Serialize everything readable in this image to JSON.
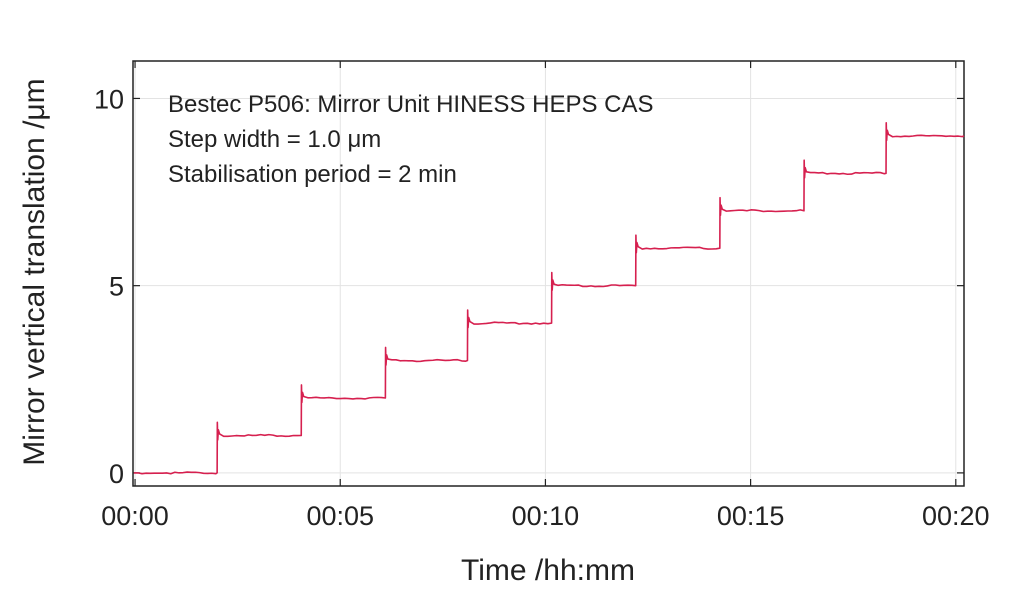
{
  "chart_data": {
    "type": "line",
    "annotations": [
      "Bestec P506: Mirror Unit HINESS HEPS CAS",
      "Step width = 1.0 μm",
      "Stabilisation period = 2 min"
    ],
    "xlabel": "Time /hh:mm",
    "ylabel": "Mirror vertical translation /μm",
    "x_tick_labels": [
      "00:00",
      "00:05",
      "00:10",
      "00:15",
      "00:20"
    ],
    "x_ticks_min": [
      0,
      5,
      10,
      15,
      20
    ],
    "y_tick_labels": [
      "0",
      "5",
      "10"
    ],
    "y_ticks": [
      0,
      5,
      10
    ],
    "xlim_min": [
      -0.05,
      20.2
    ],
    "ylim": [
      -0.35,
      11
    ],
    "grid": true,
    "line_color": "#d6204f",
    "series": [
      {
        "step_times_min": [
          2.0,
          4.05,
          6.1,
          8.1,
          10.15,
          12.2,
          14.25,
          16.3,
          18.3
        ],
        "levels_um": [
          0,
          1,
          2,
          3,
          4,
          5,
          6,
          7,
          8,
          9
        ],
        "overshoot_peaks_um": [
          1.35,
          2.35,
          3.35,
          4.35,
          5.35,
          6.35,
          7.35,
          8.35,
          9.35
        ],
        "end_time_min": 20.2
      }
    ]
  }
}
